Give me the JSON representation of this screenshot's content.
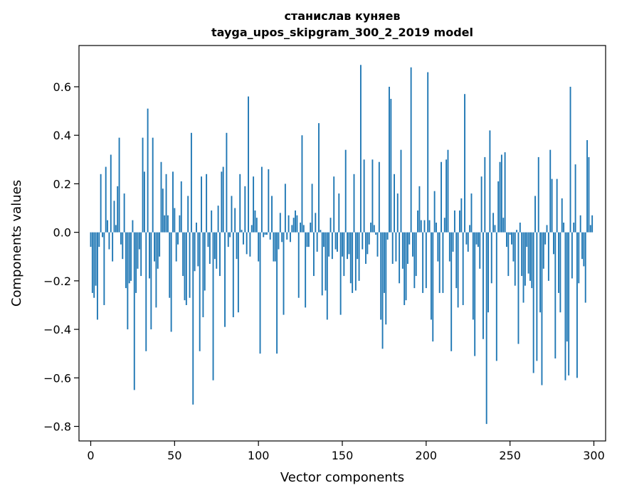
{
  "chart_data": {
    "type": "bar",
    "title": "станислав куняев",
    "subtitle": "tayga_upos_skipgram_300_2_2019 model",
    "xlabel": "Vector components",
    "ylabel": "Components values",
    "xlim": [
      -7,
      307
    ],
    "ylim": [
      -0.86,
      0.77
    ],
    "xticks": [
      0,
      50,
      100,
      150,
      200,
      250,
      300
    ],
    "xtick_labels": [
      "0",
      "50",
      "100",
      "150",
      "200",
      "250",
      "300"
    ],
    "yticks": [
      -0.8,
      -0.6,
      -0.4,
      -0.2,
      0.0,
      0.2,
      0.4,
      0.6
    ],
    "ytick_labels": [
      "−0.8",
      "−0.6",
      "−0.4",
      "−0.2",
      "0.0",
      "0.2",
      "0.4",
      "0.6"
    ],
    "bar_color": "#1f77b4",
    "values": [
      -0.06,
      -0.25,
      -0.27,
      -0.22,
      -0.36,
      -0.06,
      0.24,
      -0.02,
      -0.3,
      0.27,
      0.05,
      -0.07,
      0.32,
      -0.12,
      0.13,
      0.03,
      0.19,
      0.39,
      -0.05,
      -0.11,
      0.16,
      -0.23,
      -0.4,
      -0.21,
      -0.2,
      0.05,
      -0.65,
      -0.25,
      -0.15,
      -0.07,
      -0.18,
      0.39,
      0.25,
      -0.49,
      0.51,
      -0.19,
      -0.4,
      0.39,
      -0.12,
      -0.31,
      -0.15,
      -0.1,
      0.29,
      0.18,
      0.07,
      0.24,
      0.07,
      -0.27,
      -0.41,
      0.25,
      0.1,
      -0.12,
      -0.05,
      0.07,
      0.21,
      -0.18,
      -0.28,
      -0.3,
      0.15,
      -0.27,
      0.41,
      -0.71,
      -0.16,
      0.04,
      -0.14,
      -0.49,
      0.23,
      -0.35,
      -0.24,
      0.24,
      -0.06,
      -0.13,
      0.09,
      -0.61,
      -0.11,
      -0.15,
      0.11,
      -0.18,
      0.25,
      0.27,
      -0.39,
      0.41,
      -0.06,
      -0.02,
      0.15,
      -0.35,
      0.1,
      -0.11,
      -0.33,
      0.24,
      0.01,
      -0.05,
      0.19,
      -0.09,
      0.56,
      -0.1,
      0.03,
      0.23,
      0.09,
      0.06,
      -0.12,
      -0.5,
      0.27,
      -0.02,
      -0.01,
      -0.01,
      0.26,
      -0.03,
      0.15,
      -0.12,
      -0.12,
      -0.5,
      -0.07,
      0.08,
      -0.04,
      -0.34,
      0.2,
      -0.03,
      0.07,
      -0.04,
      0.03,
      0.06,
      0.09,
      0.07,
      -0.27,
      0.04,
      0.4,
      0.03,
      -0.31,
      -0.06,
      -0.06,
      0.04,
      0.2,
      -0.18,
      0.08,
      -0.08,
      0.45,
      0.01,
      -0.26,
      -0.06,
      -0.24,
      -0.36,
      -0.1,
      0.06,
      -0.11,
      0.23,
      -0.07,
      -0.08,
      0.16,
      -0.34,
      -0.1,
      -0.18,
      0.34,
      -0.11,
      -0.09,
      -0.21,
      -0.25,
      0.24,
      -0.24,
      -0.11,
      -0.2,
      0.69,
      -0.07,
      0.3,
      -0.13,
      -0.09,
      -0.05,
      0.04,
      0.3,
      0.03,
      -0.01,
      -0.1,
      0.29,
      -0.36,
      -0.48,
      -0.25,
      -0.38,
      -0.03,
      0.6,
      0.55,
      -0.13,
      0.24,
      -0.12,
      0.16,
      -0.21,
      0.34,
      -0.15,
      -0.3,
      -0.28,
      -0.13,
      -0.05,
      0.68,
      -0.1,
      -0.23,
      -0.18,
      0.09,
      0.19,
      0.05,
      -0.25,
      0.05,
      -0.23,
      0.66,
      0.05,
      -0.36,
      -0.45,
      0.17,
      0.04,
      -0.12,
      -0.25,
      0.29,
      -0.25,
      0.06,
      0.3,
      0.34,
      -0.12,
      -0.49,
      -0.08,
      0.09,
      -0.23,
      -0.31,
      0.09,
      0.14,
      -0.3,
      0.57,
      -0.05,
      -0.08,
      0.03,
      0.16,
      -0.36,
      -0.51,
      -0.05,
      -0.06,
      -0.15,
      0.23,
      -0.44,
      0.31,
      -0.79,
      -0.33,
      0.42,
      -0.21,
      0.08,
      0.03,
      -0.53,
      0.21,
      0.29,
      0.32,
      0.06,
      0.33,
      -0.06,
      -0.18,
      -0.01,
      -0.05,
      -0.12,
      -0.22,
      0.01,
      -0.46,
      0.04,
      -0.18,
      -0.29,
      -0.22,
      -0.06,
      -0.17,
      -0.2,
      -0.23,
      -0.58,
      0.15,
      -0.53,
      0.31,
      -0.33,
      -0.63,
      -0.15,
      -0.05,
      0.03,
      -0.2,
      0.34,
      0.22,
      -0.09,
      -0.52,
      0.22,
      -0.25,
      -0.33,
      0.14,
      0.04,
      -0.61,
      -0.45,
      -0.59,
      0.6,
      -0.19,
      0.04,
      0.28,
      -0.6,
      -0.21,
      0.07,
      -0.11,
      -0.14,
      -0.29,
      0.38,
      0.31,
      0.03,
      0.07
    ]
  }
}
